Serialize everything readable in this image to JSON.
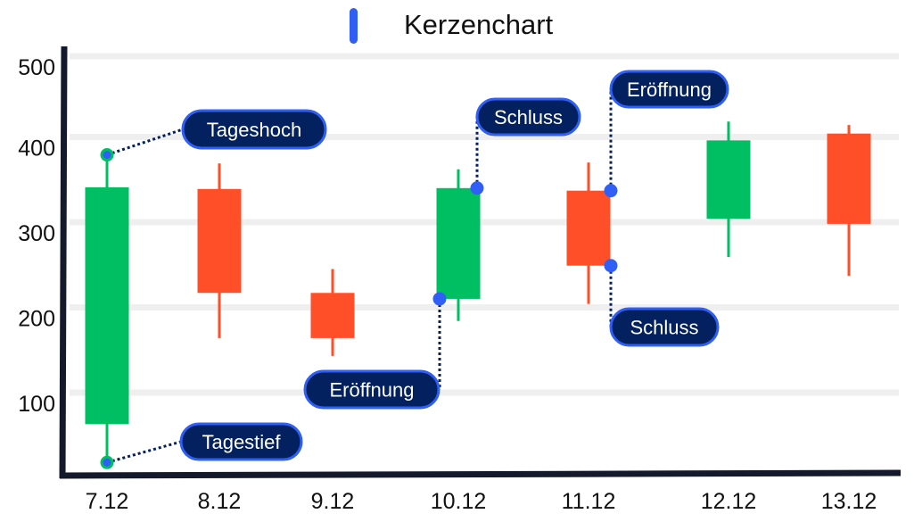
{
  "chart_data": {
    "type": "candlestick",
    "title": "",
    "xlabel": "",
    "ylabel": "",
    "legend": {
      "label": "Kerzenchart",
      "position": "top-center",
      "color": "#2f5ff5"
    },
    "ylim": [
      0,
      500
    ],
    "yticks": [
      100,
      200,
      300,
      400,
      500
    ],
    "grid": true,
    "categories": [
      "7.12",
      "8.12",
      "9.12",
      "10.12",
      "11.12",
      "12.12",
      "13.12"
    ],
    "ohlc": [
      {
        "open": 63,
        "high": 379,
        "low": 18,
        "close": 341
      },
      {
        "open": 339,
        "high": 369,
        "low": 164,
        "close": 217
      },
      {
        "open": 217,
        "high": 245,
        "low": 143,
        "close": 164
      },
      {
        "open": 210,
        "high": 362,
        "low": 184,
        "close": 340
      },
      {
        "open": 337,
        "high": 370,
        "low": 204,
        "close": 249
      },
      {
        "open": 304,
        "high": 418,
        "low": 259,
        "close": 396
      },
      {
        "open": 404,
        "high": 414,
        "low": 237,
        "close": 298
      }
    ],
    "colors": {
      "up": "#00bf63",
      "down": "#ff4f28",
      "axis": "#141a2b",
      "grid": "#efefef",
      "annotation_fill": "#03205f",
      "annotation_border": "#2f5ff5",
      "marker": "#2f5ff5"
    },
    "annotations": [
      {
        "label": "Tageshoch",
        "candle": "7.12",
        "field": "high"
      },
      {
        "label": "Tagestief",
        "candle": "7.12",
        "field": "low"
      },
      {
        "label": "Eröffnung",
        "candle": "10.12",
        "field": "open"
      },
      {
        "label": "Schluss",
        "candle": "10.12",
        "field": "close"
      },
      {
        "label": "Eröffnung",
        "candle": "11.12",
        "field": "open"
      },
      {
        "label": "Schluss",
        "candle": "11.12",
        "field": "close"
      }
    ]
  }
}
